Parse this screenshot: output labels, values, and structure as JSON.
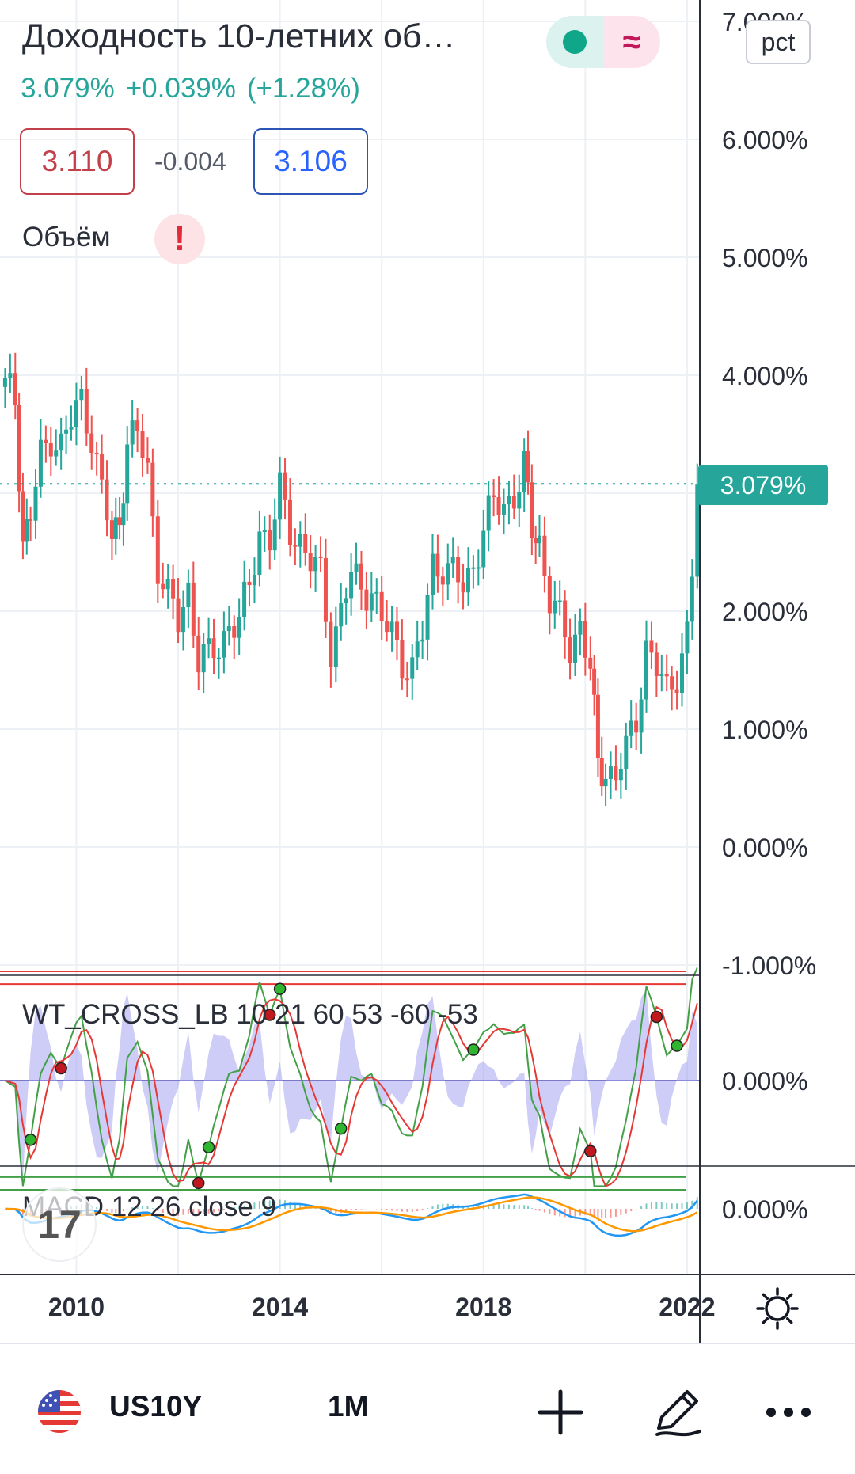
{
  "header": {
    "title": "Доходность 10-летних об…",
    "last": "3.079%",
    "change": "+0.039%",
    "change_pct": "(+1.28%)",
    "bid": "3.110",
    "spread": "-0.004",
    "ask": "3.106",
    "volume_label": "Объём",
    "volume_warning": "!",
    "scale_button": "pct",
    "status_icon": "market-open-dot",
    "delay_icon": "approx-icon"
  },
  "colors": {
    "up": "#26a69a",
    "down": "#ef5350",
    "wt_green": "#43a047",
    "wt_red": "#e53935",
    "wt_area": "#9c9cf0",
    "macd": "#2196f3",
    "signal": "#ff9800"
  },
  "chart_data": [
    {
      "type": "candlestick",
      "title": "Доходность 10-летних об…",
      "interval": "1M",
      "y_unit": "%",
      "ylim": [
        -1.0,
        7.0
      ],
      "y_ticks": [
        "7.000%",
        "6.000%",
        "5.000%",
        "4.000%",
        "3.000%",
        "2.000%",
        "1.000%",
        "0.000%",
        "-1.000%"
      ],
      "x_ticks": [
        "2010",
        "2014",
        "2018",
        "2022"
      ],
      "xlim": [
        2008.5,
        2022.25
      ],
      "last_price": 3.079,
      "last_price_label": "3.079%",
      "close_series": [
        [
          2008.6,
          3.9
        ],
        [
          2008.8,
          3.8
        ],
        [
          2008.95,
          2.6
        ],
        [
          2009.1,
          2.8
        ],
        [
          2009.3,
          3.3
        ],
        [
          2009.5,
          3.5
        ],
        [
          2009.7,
          3.4
        ],
        [
          2009.9,
          3.6
        ],
        [
          2010.1,
          3.8
        ],
        [
          2010.3,
          3.5
        ],
        [
          2010.5,
          3.0
        ],
        [
          2010.7,
          2.6
        ],
        [
          2010.85,
          2.8
        ],
        [
          2011.0,
          3.4
        ],
        [
          2011.2,
          3.5
        ],
        [
          2011.4,
          3.2
        ],
        [
          2011.6,
          2.4
        ],
        [
          2011.8,
          2.1
        ],
        [
          2012.0,
          1.9
        ],
        [
          2012.2,
          2.2
        ],
        [
          2012.4,
          1.6
        ],
        [
          2012.6,
          1.6
        ],
        [
          2012.8,
          1.7
        ],
        [
          2013.0,
          1.9
        ],
        [
          2013.2,
          1.9
        ],
        [
          2013.4,
          2.2
        ],
        [
          2013.6,
          2.7
        ],
        [
          2013.8,
          2.6
        ],
        [
          2014.0,
          3.0
        ],
        [
          2014.2,
          2.7
        ],
        [
          2014.4,
          2.6
        ],
        [
          2014.6,
          2.4
        ],
        [
          2014.8,
          2.3
        ],
        [
          2015.0,
          1.7
        ],
        [
          2015.2,
          2.0
        ],
        [
          2015.4,
          2.3
        ],
        [
          2015.6,
          2.2
        ],
        [
          2015.8,
          2.2
        ],
        [
          2016.0,
          1.9
        ],
        [
          2016.2,
          1.8
        ],
        [
          2016.4,
          1.6
        ],
        [
          2016.6,
          1.5
        ],
        [
          2016.8,
          1.8
        ],
        [
          2017.0,
          2.4
        ],
        [
          2017.2,
          2.4
        ],
        [
          2017.4,
          2.3
        ],
        [
          2017.6,
          2.2
        ],
        [
          2017.8,
          2.4
        ],
        [
          2018.0,
          2.7
        ],
        [
          2018.2,
          2.9
        ],
        [
          2018.4,
          2.9
        ],
        [
          2018.6,
          3.0
        ],
        [
          2018.8,
          3.2
        ],
        [
          2018.95,
          2.7
        ],
        [
          2019.1,
          2.6
        ],
        [
          2019.3,
          2.1
        ],
        [
          2019.5,
          1.9
        ],
        [
          2019.7,
          1.7
        ],
        [
          2019.9,
          1.9
        ],
        [
          2020.1,
          1.5
        ],
        [
          2020.25,
          0.7
        ],
        [
          2020.4,
          0.65
        ],
        [
          2020.6,
          0.6
        ],
        [
          2020.8,
          0.8
        ],
        [
          2021.0,
          1.1
        ],
        [
          2021.2,
          1.7
        ],
        [
          2021.4,
          1.5
        ],
        [
          2021.6,
          1.3
        ],
        [
          2021.8,
          1.5
        ],
        [
          2022.0,
          1.8
        ],
        [
          2022.1,
          2.3
        ],
        [
          2022.2,
          3.08
        ]
      ]
    },
    {
      "type": "line",
      "name_label": "WT_CROSS_LB 10 21 60 53 -60 -53",
      "y_ticks": [
        "0.000%"
      ],
      "levels": [
        60,
        53,
        -53,
        -60
      ],
      "ylim": [
        -65,
        65
      ]
    },
    {
      "type": "line",
      "name_label": "MACD 12 26 close 9",
      "y_ticks": [
        "0.000%"
      ]
    }
  ],
  "toolbar": {
    "symbol": "US10Y",
    "interval": "1M",
    "flag_icon": "us-flag-icon",
    "add_icon": "plus-icon",
    "draw_icon": "pen-icon",
    "more_icon": "more-icon",
    "settings_icon": "gear-icon",
    "watermark": "17"
  }
}
